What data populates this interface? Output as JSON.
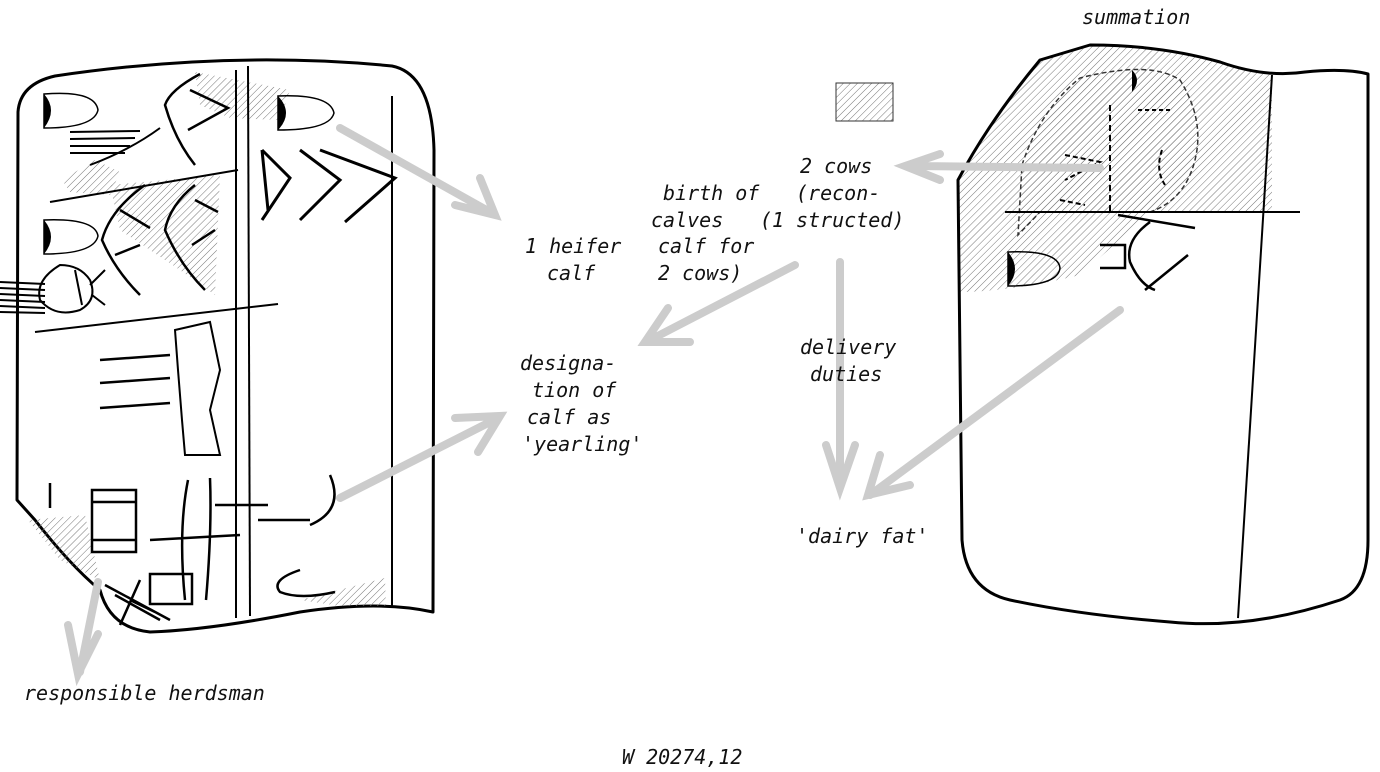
{
  "figure": {
    "catalog_number": "W 20274,12",
    "colors": {
      "ink": "#000000",
      "arrow": "#cccccc",
      "hatch": "#777777",
      "text": "#111111"
    }
  },
  "labels": {
    "summation": "summation",
    "cows_line1": "2 cows",
    "cows_line2": "(recon-",
    "cows_line3": "structed)",
    "birth_line1": "birth of",
    "birth_line2": "calves",
    "birth_line3": "(1",
    "birth_line4": "calf for",
    "birth_line5": "2 cows)",
    "heifer_line1": "1 heifer",
    "heifer_line2": "calf",
    "designation_line1": "designa-",
    "designation_line2": "tion of",
    "designation_line3": "calf as",
    "designation_line4": "'yearling'",
    "delivery_line1": "delivery",
    "delivery_line2": "duties",
    "dairy_fat": "'dairy fat'",
    "herdsman": "responsible herdsman"
  }
}
